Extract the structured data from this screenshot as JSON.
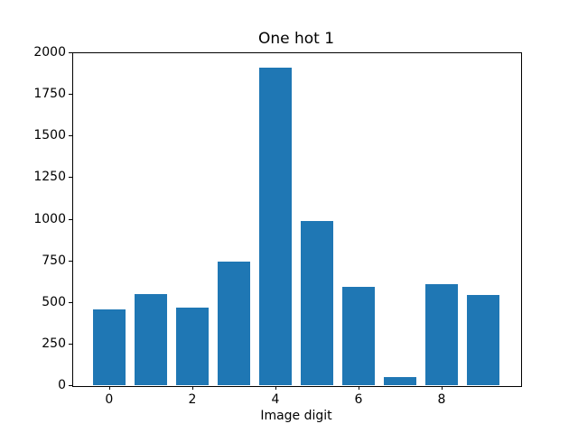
{
  "chart_data": {
    "type": "bar",
    "title": "One hot 1",
    "xlabel": "Image digit",
    "ylabel": "",
    "categories": [
      0,
      1,
      2,
      3,
      4,
      5,
      6,
      7,
      8,
      9
    ],
    "values": [
      455,
      545,
      465,
      745,
      1910,
      985,
      590,
      50,
      605,
      540
    ],
    "bar_color": "#1f77b4",
    "bar_width": 0.8,
    "xlim": [
      -0.89,
      9.89
    ],
    "ylim": [
      0,
      2000
    ],
    "xticks": [
      0,
      2,
      4,
      6,
      8
    ],
    "yticks": [
      0,
      250,
      500,
      750,
      1000,
      1250,
      1500,
      1750,
      2000
    ],
    "grid": false,
    "legend": null,
    "background": "#ffffff",
    "spine_color": "#000000"
  }
}
